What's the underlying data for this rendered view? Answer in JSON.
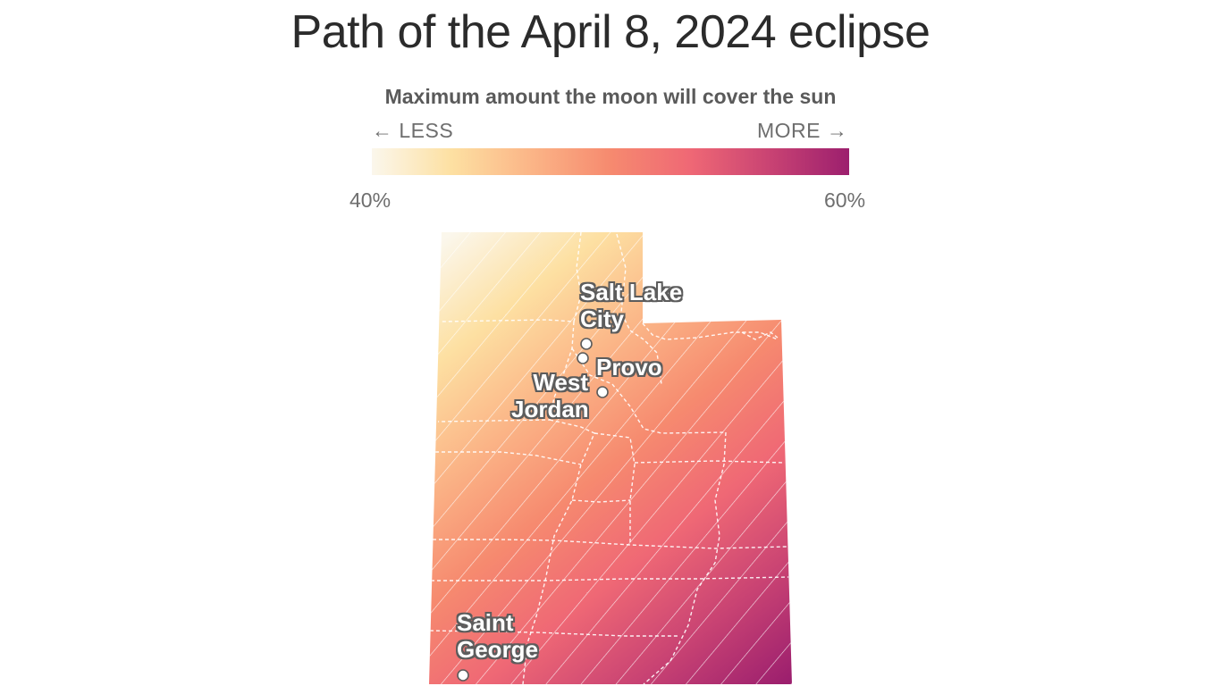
{
  "title": "Path of the April 8, 2024 eclipse",
  "legend": {
    "title": "Maximum amount the moon will cover the sun",
    "less_label": "← LESS",
    "more_label": "MORE →",
    "min_label": "40%",
    "max_label": "60%",
    "min_value": 40,
    "max_value": 60,
    "gradient_colors": [
      "#fbf7ec",
      "#fde0a2",
      "#fbb587",
      "#f68a6f",
      "#ef6875",
      "#c94373",
      "#9c1f6e"
    ]
  },
  "map": {
    "region": "Utah",
    "hatch_meaning": "",
    "cities": [
      {
        "name": "Salt Lake City",
        "label_lines": [
          "Salt Lake",
          "City"
        ]
      },
      {
        "name": "West Jordan",
        "label_lines": [
          "West",
          "Jordan"
        ]
      },
      {
        "name": "Provo",
        "label_lines": [
          "Provo"
        ]
      },
      {
        "name": "Saint George",
        "label_lines": [
          "Saint",
          "George"
        ]
      }
    ]
  }
}
